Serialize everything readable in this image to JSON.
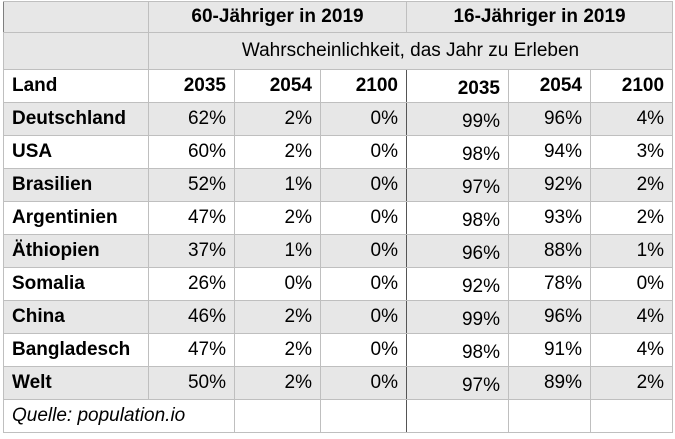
{
  "header": {
    "group_a": "60-Jähriger in 2019",
    "group_b": "16-Jähriger in 2019",
    "subtitle": "Wahrscheinlichkeit, das Jahr zu Erleben",
    "country_col": "Land",
    "years": [
      "2035",
      "2054",
      "2100",
      "2035",
      "2054",
      "2100"
    ]
  },
  "rows": [
    {
      "land": "Deutschland",
      "v": [
        "62%",
        "2%",
        "0%",
        "99%",
        "96%",
        "4%"
      ]
    },
    {
      "land": "USA",
      "v": [
        "60%",
        "2%",
        "0%",
        "98%",
        "94%",
        "3%"
      ]
    },
    {
      "land": "Brasilien",
      "v": [
        "52%",
        "1%",
        "0%",
        "97%",
        "92%",
        "2%"
      ]
    },
    {
      "land": "Argentinien",
      "v": [
        "47%",
        "2%",
        "0%",
        "98%",
        "93%",
        "2%"
      ]
    },
    {
      "land": "Äthiopien",
      "v": [
        "37%",
        "1%",
        "0%",
        "96%",
        "88%",
        "1%"
      ]
    },
    {
      "land": "Somalia",
      "v": [
        "26%",
        "0%",
        "0%",
        "92%",
        "78%",
        "0%"
      ]
    },
    {
      "land": "China",
      "v": [
        "46%",
        "2%",
        "0%",
        "99%",
        "96%",
        "4%"
      ]
    },
    {
      "land": "Bangladesch",
      "v": [
        "47%",
        "2%",
        "0%",
        "98%",
        "91%",
        "4%"
      ]
    },
    {
      "land": "Welt",
      "v": [
        "50%",
        "2%",
        "0%",
        "97%",
        "89%",
        "2%"
      ]
    }
  ],
  "source": "Quelle: population.io",
  "colors": {
    "shade": "#e7e7e7",
    "border": "#bfbfbf"
  }
}
